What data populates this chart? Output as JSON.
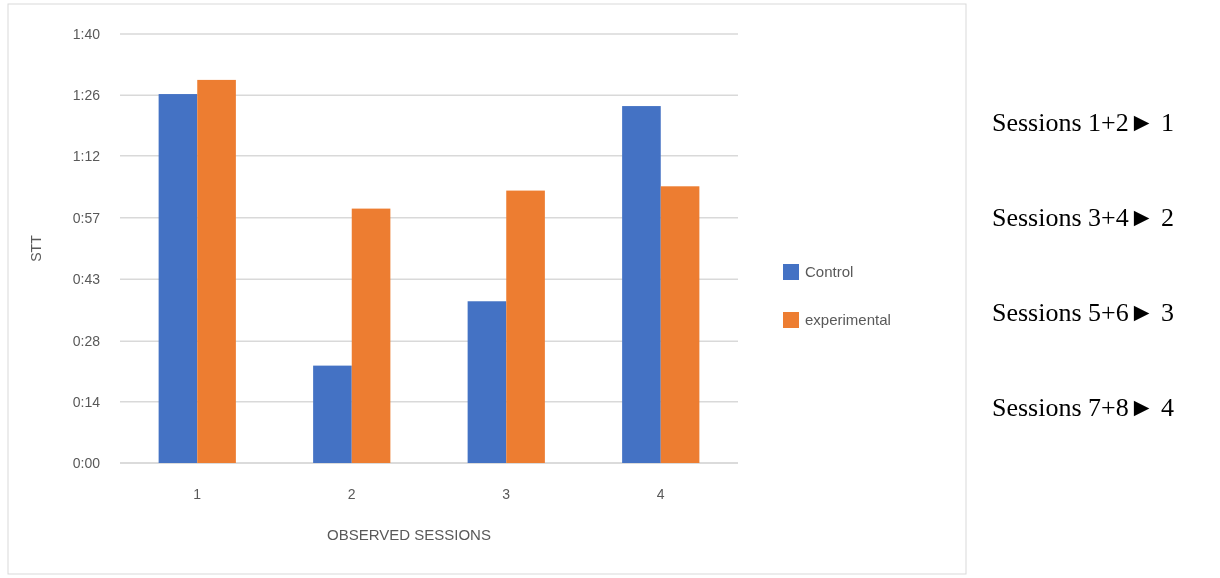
{
  "chart_data": {
    "type": "bar",
    "xlabel": "OBSERVED SESSIONS",
    "ylabel": "STT",
    "categories": [
      "1",
      "2",
      "3",
      "4"
    ],
    "series": [
      {
        "name": "Control",
        "color": "#4472c4",
        "values": [
          86.0,
          22.7,
          37.7,
          83.2
        ]
      },
      {
        "name": "experimental",
        "color": "#ed7d31",
        "values": [
          89.3,
          59.3,
          63.5,
          64.5
        ]
      }
    ],
    "ylim": [
      0,
      100
    ],
    "yticks": [
      {
        "value": 0,
        "label": "0:00"
      },
      {
        "value": 14.29,
        "label": "0:14"
      },
      {
        "value": 28.4,
        "label": "0:28"
      },
      {
        "value": 42.86,
        "label": "0:43"
      },
      {
        "value": 57.14,
        "label": "0:57"
      },
      {
        "value": 71.6,
        "label": "1:12"
      },
      {
        "value": 85.71,
        "label": "1:26"
      },
      {
        "value": 100,
        "label": "1:40"
      }
    ],
    "grid": "y",
    "legend": "right",
    "annotations": [
      "Sessions 1+2► 1",
      "Sessions 3+4► 2",
      "Sessions 5+6► 3",
      "Sessions 7+8► 4"
    ]
  }
}
